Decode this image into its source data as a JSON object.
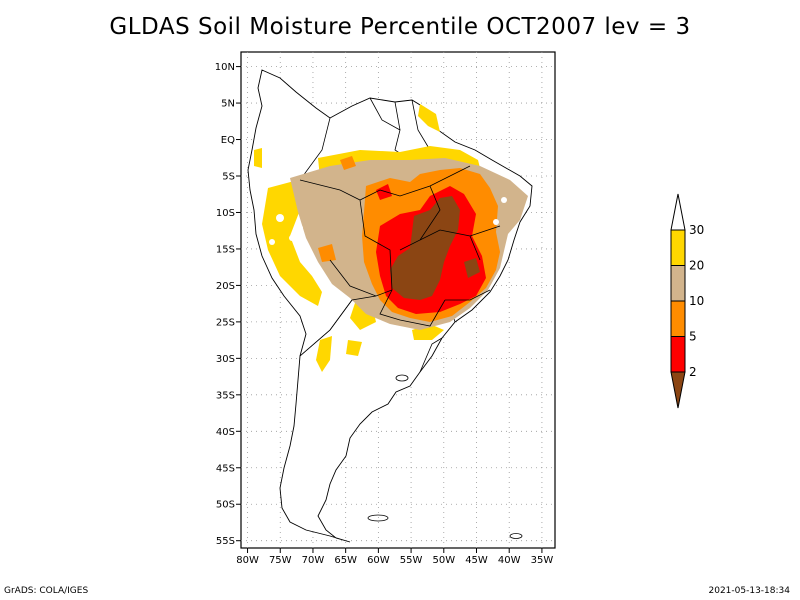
{
  "title": "GLDAS Soil Moisture Percentile OCT2007 lev = 3",
  "map": {
    "lat_ticks": [
      "10N",
      "5N",
      "EQ",
      "5S",
      "10S",
      "15S",
      "20S",
      "25S",
      "30S",
      "35S",
      "40S",
      "45S",
      "50S",
      "55S"
    ],
    "lon_ticks": [
      "80W",
      "75W",
      "70W",
      "65W",
      "60W",
      "55W",
      "50W",
      "45W",
      "40W",
      "35W"
    ],
    "lon_range": [
      -81,
      -33
    ],
    "lat_range": [
      -56,
      12
    ],
    "grid": "dotted"
  },
  "legend": {
    "labels": [
      "2",
      "5",
      "10",
      "20",
      "30"
    ],
    "colors": [
      "#8b4513",
      "#ff0000",
      "#ff8c00",
      "#d2b48c",
      "#ffd700",
      "#ffffff"
    ]
  },
  "footer": {
    "left": "GrADS: COLA/IGES",
    "right": "2021-05-13-18:34"
  }
}
